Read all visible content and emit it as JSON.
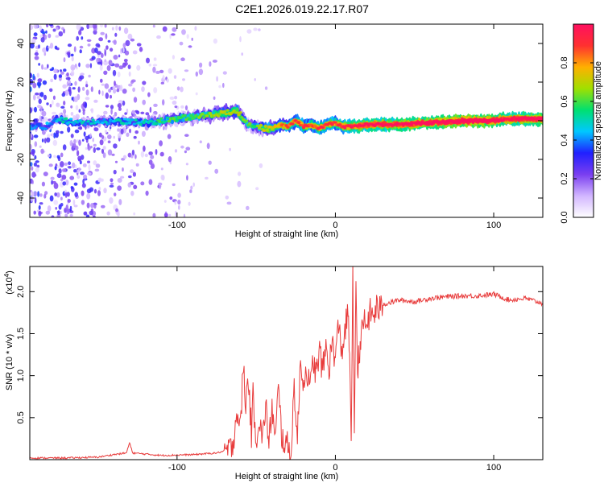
{
  "title": "C2E1.2026.019.22.17.R07",
  "chart_data": [
    {
      "type": "heatmap",
      "xlabel": "Height of straight line (km)",
      "ylabel": "Frequency (Hz)",
      "xlim": [
        -193,
        131
      ],
      "ylim": [
        -50,
        50
      ],
      "xticks": [
        -100,
        0,
        100
      ],
      "xtick_labels": [
        "-100",
        "0",
        "100"
      ],
      "yticks": [
        -40,
        -20,
        0,
        20,
        40
      ],
      "ytick_labels": [
        "-40",
        "-20",
        "0",
        "20",
        "40"
      ],
      "colorbar": {
        "label": "Normalized spectral amplitude",
        "range": [
          0,
          1
        ],
        "ticks": [
          0.0,
          0.2,
          0.4,
          0.6,
          0.8
        ],
        "tick_labels": [
          "0.0",
          "0.2",
          "0.4",
          "0.6",
          "0.8"
        ],
        "colors": [
          "#ffffff",
          "#d2b6ff",
          "#7a3ef0",
          "#2020ff",
          "#00c8ff",
          "#00e070",
          "#a0e000",
          "#ffb000",
          "#ff3030",
          "#ff1060"
        ]
      },
      "ridge": {
        "x": [
          -193,
          -183,
          -175,
          -170,
          -160,
          -140,
          -120,
          -100,
          -90,
          -80,
          -70,
          -62,
          -55,
          -50,
          -45,
          -40,
          -35,
          -30,
          -25,
          -20,
          -15,
          -10,
          -5,
          0,
          5,
          10,
          20,
          40,
          60,
          80,
          100,
          110,
          120,
          131
        ],
        "freq": [
          -3,
          -3,
          1,
          0,
          -1,
          0,
          -1,
          1,
          2,
          3,
          4,
          5,
          -2,
          -3,
          -4,
          -4,
          -2,
          -3,
          0,
          -3,
          -2,
          -4,
          -2,
          -1,
          -3,
          -3,
          -2,
          -2,
          -1,
          0,
          0,
          1,
          1,
          1
        ],
        "amplitude": [
          0.25,
          0.25,
          0.3,
          0.35,
          0.3,
          0.3,
          0.35,
          0.45,
          0.45,
          0.5,
          0.55,
          0.55,
          0.45,
          0.45,
          0.55,
          0.6,
          0.65,
          0.7,
          0.75,
          0.75,
          0.7,
          0.8,
          0.75,
          0.75,
          0.8,
          0.8,
          0.85,
          0.85,
          0.9,
          0.95,
          0.95,
          0.85,
          0.9,
          0.9
        ]
      }
    },
    {
      "type": "line",
      "xlabel": "Height of straight line (km)",
      "ylabel": "SNR (10 * v/v)",
      "y_scale_label": "(x10",
      "y_scale_exponent": "4",
      "y_scale_close": ")",
      "xlim": [
        -193,
        131
      ],
      "ylim": [
        0,
        2.3
      ],
      "xticks": [
        -100,
        0,
        100
      ],
      "xtick_labels": [
        "-100",
        "0",
        "100"
      ],
      "yticks": [
        0.5,
        1.0,
        1.5,
        2.0
      ],
      "ytick_labels": [
        "0.5",
        "1.0",
        "1.5",
        "2.0"
      ],
      "line_color": "#e83c3c",
      "series": [
        {
          "name": "SNR",
          "x": [
            -193,
            -170,
            -150,
            -140,
            -132,
            -130,
            -128,
            -110,
            -90,
            -75,
            -66,
            -64,
            -62,
            -60,
            -58,
            -57,
            -55,
            -53,
            -52,
            -50,
            -48,
            -46,
            -44,
            -42,
            -40,
            -38,
            -36,
            -34,
            -32,
            -30,
            -28,
            -26,
            -24,
            -22,
            -20,
            -18,
            -16,
            -14,
            -12,
            -10,
            -8,
            -6,
            -4,
            -2,
            0,
            2,
            4,
            6,
            8,
            9,
            10,
            11,
            12,
            13,
            14,
            15,
            16,
            18,
            20,
            22,
            24,
            26,
            28,
            30,
            35,
            40,
            50,
            60,
            70,
            80,
            90,
            100,
            110,
            120,
            131
          ],
          "y": [
            0.02,
            0.02,
            0.03,
            0.06,
            0.08,
            0.2,
            0.08,
            0.05,
            0.06,
            0.08,
            0.12,
            0.3,
            0.6,
            0.35,
            1.2,
            0.6,
            1.0,
            0.3,
            0.75,
            0.25,
            0.5,
            0.2,
            0.7,
            0.15,
            0.65,
            0.2,
            0.85,
            0.3,
            0.2,
            0.15,
            0.08,
            0.9,
            0.2,
            1.2,
            0.9,
            1.1,
            0.8,
            1.2,
            1.0,
            1.3,
            1.05,
            1.35,
            1.1,
            1.4,
            1.2,
            1.6,
            1.3,
            1.5,
            1.8,
            1.1,
            0.3,
            2.25,
            0.15,
            2.2,
            1.0,
            1.3,
            1.4,
            1.65,
            1.6,
            1.75,
            1.7,
            1.82,
            1.78,
            1.85,
            1.87,
            1.9,
            1.88,
            1.92,
            1.94,
            1.95,
            1.95,
            1.97,
            1.9,
            1.92,
            1.86
          ]
        }
      ]
    }
  ]
}
